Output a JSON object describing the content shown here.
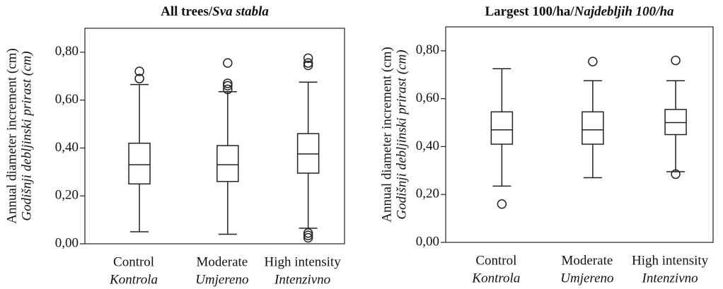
{
  "chart_data": [
    {
      "type": "box",
      "title": "All trees/",
      "title_translation": "Sva stabla",
      "ylabel": "Annual diameter increment (cm)",
      "ylabel_translation": "Godišnji debljinski prirast  (cm)",
      "categories": [
        "Control",
        "Moderate",
        "High intensity"
      ],
      "categories_translation": [
        "Kontrola",
        "Umjereno",
        "Intenzivno"
      ],
      "ylim": [
        0,
        0.9
      ],
      "yticks": [
        {
          "value": 0,
          "label": "0,00"
        },
        {
          "value": 0.2,
          "label": "0,20"
        },
        {
          "value": 0.4,
          "label": "0,40"
        },
        {
          "value": 0.6,
          "label": "0,60"
        },
        {
          "value": 0.8,
          "label": "0,80"
        }
      ],
      "boxes": [
        {
          "min": 0.05,
          "q1": 0.25,
          "median": 0.33,
          "q3": 0.42,
          "max": 0.665,
          "outliers": [
            0.69,
            0.72
          ]
        },
        {
          "min": 0.04,
          "q1": 0.26,
          "median": 0.33,
          "q3": 0.41,
          "max": 0.635,
          "outliers": [
            0.645,
            0.66,
            0.67,
            0.755
          ]
        },
        {
          "min": 0.065,
          "q1": 0.295,
          "median": 0.375,
          "q3": 0.46,
          "max": 0.675,
          "outliers": [
            0.025,
            0.035,
            0.045,
            0.745,
            0.755,
            0.775
          ]
        }
      ]
    },
    {
      "type": "box",
      "title": "Largest 100/ha/",
      "title_translation": "Najdebljih 100/ha",
      "ylabel": "Annual diameter increment (cm)",
      "ylabel_translation": "Godišnji debljinski prirast  (cm)",
      "categories": [
        "Control",
        "Moderate",
        "High intensity"
      ],
      "categories_translation": [
        "Kontrola",
        "Umjereno",
        "Intenzivno"
      ],
      "ylim": [
        0,
        0.9
      ],
      "yticks": [
        {
          "value": 0,
          "label": "0,00"
        },
        {
          "value": 0.2,
          "label": "0,20"
        },
        {
          "value": 0.4,
          "label": "0,40"
        },
        {
          "value": 0.6,
          "label": "0,60"
        },
        {
          "value": 0.8,
          "label": "0,80"
        }
      ],
      "boxes": [
        {
          "min": 0.235,
          "q1": 0.41,
          "median": 0.47,
          "q3": 0.545,
          "max": 0.725,
          "outliers": [
            0.16
          ]
        },
        {
          "min": 0.27,
          "q1": 0.41,
          "median": 0.47,
          "q3": 0.545,
          "max": 0.675,
          "outliers": [
            0.755
          ]
        },
        {
          "min": 0.295,
          "q1": 0.45,
          "median": 0.5,
          "q3": 0.555,
          "max": 0.675,
          "outliers": [
            0.285,
            0.76
          ]
        }
      ]
    }
  ]
}
